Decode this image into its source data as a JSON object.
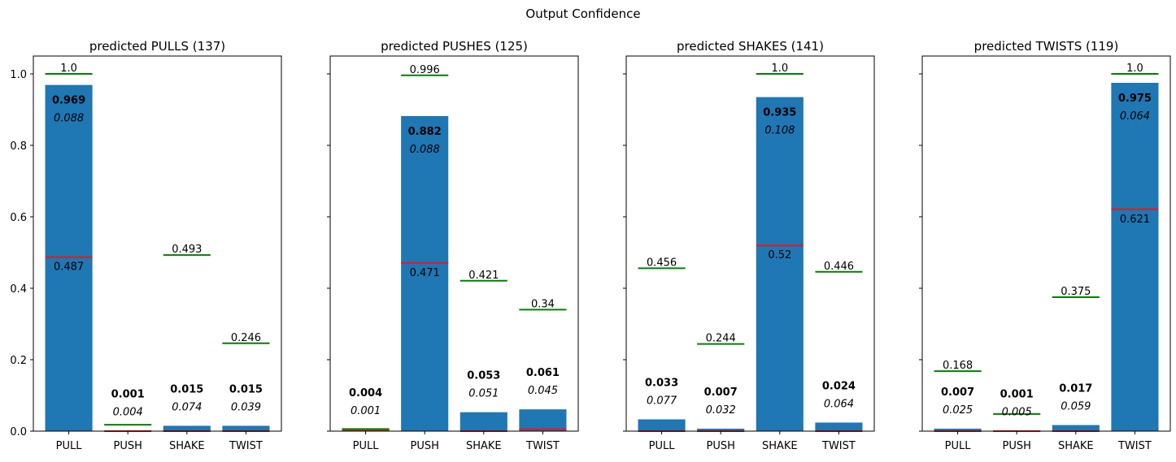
{
  "title": "Output Confidence",
  "chart_data": [
    {
      "type": "bar",
      "title": "predicted PULLS (137)",
      "categories": [
        "PULL",
        "PUSH",
        "SHAKE",
        "TWIST"
      ],
      "values": [
        0.969,
        0.001,
        0.015,
        0.015
      ],
      "value_labels": [
        "0.969",
        "0.001",
        "0.015",
        "0.015"
      ],
      "std": [
        0.088,
        0.004,
        0.074,
        0.039
      ],
      "std_labels": [
        "0.088",
        "0.004",
        "0.074",
        "0.039"
      ],
      "max": [
        1.0,
        0.018,
        0.493,
        0.246
      ],
      "max_labels": [
        "1.0",
        "",
        "0.493",
        "0.246"
      ],
      "min": [
        0.487,
        0.0,
        0.0,
        0.0
      ],
      "min_labels": [
        "0.487",
        "",
        "",
        ""
      ],
      "ylim": [
        0,
        1.05
      ],
      "yticks": [
        "0.0",
        "0.2",
        "0.4",
        "0.6",
        "0.8",
        "1.0"
      ]
    },
    {
      "type": "bar",
      "title": "predicted PUSHES (125)",
      "categories": [
        "PULL",
        "PUSH",
        "SHAKE",
        "TWIST"
      ],
      "values": [
        0.004,
        0.882,
        0.053,
        0.061
      ],
      "value_labels": [
        "0.004",
        "0.882",
        "0.053",
        "0.061"
      ],
      "std": [
        0.001,
        0.088,
        0.051,
        0.045
      ],
      "std_labels": [
        "0.001",
        "0.088",
        "0.051",
        "0.045"
      ],
      "max": [
        0.006,
        0.996,
        0.421,
        0.34
      ],
      "max_labels": [
        "",
        "0.996",
        "0.421",
        "0.34"
      ],
      "min": [
        0.002,
        0.471,
        0.0,
        0.005
      ],
      "min_labels": [
        "",
        "0.471",
        "",
        ""
      ],
      "ylim": [
        0,
        1.05
      ],
      "yticks": [
        "",
        "",
        "",
        "",
        "",
        ""
      ]
    },
    {
      "type": "bar",
      "title": "predicted SHAKES (141)",
      "categories": [
        "PULL",
        "PUSH",
        "SHAKE",
        "TWIST"
      ],
      "values": [
        0.033,
        0.007,
        0.935,
        0.024
      ],
      "value_labels": [
        "0.033",
        "0.007",
        "0.935",
        "0.024"
      ],
      "std": [
        0.077,
        0.032,
        0.108,
        0.064
      ],
      "std_labels": [
        "0.077",
        "0.032",
        "0.108",
        "0.064"
      ],
      "max": [
        0.456,
        0.244,
        1.0,
        0.446
      ],
      "max_labels": [
        "0.456",
        "0.244",
        "1.0",
        "0.446"
      ],
      "min": [
        0.0,
        0.0,
        0.52,
        0.0
      ],
      "min_labels": [
        "",
        "",
        "0.52",
        ""
      ],
      "ylim": [
        0,
        1.05
      ],
      "yticks": [
        "",
        "",
        "",
        "",
        "",
        ""
      ]
    },
    {
      "type": "bar",
      "title": "predicted TWISTS (119)",
      "categories": [
        "PULL",
        "PUSH",
        "SHAKE",
        "TWIST"
      ],
      "values": [
        0.007,
        0.001,
        0.017,
        0.975
      ],
      "value_labels": [
        "0.007",
        "0.001",
        "0.017",
        "0.975"
      ],
      "std": [
        0.025,
        0.005,
        0.059,
        0.064
      ],
      "std_labels": [
        "0.025",
        "0.005",
        "0.059",
        "0.064"
      ],
      "max": [
        0.168,
        0.048,
        0.375,
        1.0
      ],
      "max_labels": [
        "0.168",
        "",
        "0.375",
        "1.0"
      ],
      "min": [
        0.0,
        0.0,
        0.0,
        0.621
      ],
      "min_labels": [
        "",
        "",
        "",
        "0.621"
      ],
      "ylim": [
        0,
        1.05
      ],
      "yticks": [
        "",
        "",
        "",
        "",
        "",
        ""
      ]
    }
  ],
  "colors": {
    "bar": "#1f77b4",
    "max_line": "#008000",
    "min_line": "#e41a1c"
  }
}
